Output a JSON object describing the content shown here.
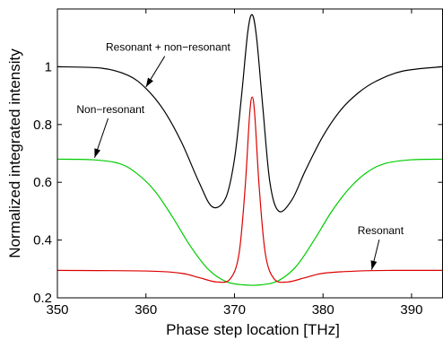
{
  "chart_data": {
    "type": "line",
    "title": "",
    "xlabel": "Phase step location [THz]",
    "ylabel": "Normalized integrated intensity",
    "xlim": [
      350,
      393.5
    ],
    "ylim": [
      0.2,
      1.2
    ],
    "grid": false,
    "legend": "none",
    "x_ticks": [
      "350",
      "360",
      "370",
      "380",
      "390"
    ],
    "y_ticks": [
      "0.2",
      "0.4",
      "0.6",
      "0.8",
      "1"
    ],
    "series": [
      {
        "color": "#000000",
        "x": [
          350,
          355,
          358,
          360,
          362,
          364,
          366,
          367.5,
          369,
          370,
          370.8,
          371.5,
          372,
          372.5,
          373.2,
          374,
          375,
          376.5,
          378,
          380,
          382,
          384,
          386,
          389,
          393.5
        ],
        "y": [
          1.0,
          0.995,
          0.97,
          0.925,
          0.85,
          0.74,
          0.6,
          0.515,
          0.545,
          0.68,
          0.9,
          1.12,
          1.18,
          1.1,
          0.86,
          0.6,
          0.5,
          0.54,
          0.64,
          0.76,
          0.85,
          0.91,
          0.95,
          0.985,
          1.0
        ]
      },
      {
        "color": "#00cc00",
        "x": [
          350,
          354,
          357,
          359,
          361,
          363,
          365,
          367,
          369,
          371,
          373,
          375,
          377,
          379,
          381,
          383,
          385,
          387,
          390,
          393.5
        ],
        "y": [
          0.68,
          0.678,
          0.665,
          0.63,
          0.57,
          0.48,
          0.38,
          0.3,
          0.257,
          0.245,
          0.245,
          0.26,
          0.31,
          0.4,
          0.5,
          0.58,
          0.635,
          0.665,
          0.678,
          0.68
        ]
      },
      {
        "color": "#dd0000",
        "x": [
          350,
          360,
          364,
          366,
          368,
          369.5,
          370.5,
          371.2,
          371.7,
          372,
          372.3,
          372.8,
          373.5,
          374.5,
          376,
          378,
          380,
          384,
          388,
          393.5
        ],
        "y": [
          0.295,
          0.293,
          0.285,
          0.27,
          0.255,
          0.265,
          0.35,
          0.58,
          0.83,
          0.895,
          0.83,
          0.58,
          0.35,
          0.265,
          0.255,
          0.27,
          0.285,
          0.293,
          0.295,
          0.295
        ]
      }
    ],
    "annotations": [
      {
        "label": "Resonant + non−resonant",
        "x": 362.5,
        "y": 1.055,
        "arrow_to": [
          360,
          0.93
        ]
      },
      {
        "label": "Non−resonant",
        "x": 356,
        "y": 0.84,
        "arrow_to": [
          354.2,
          0.685
        ]
      },
      {
        "label": "Resonant",
        "x": 386.5,
        "y": 0.42,
        "arrow_to": [
          385.5,
          0.297
        ]
      }
    ]
  }
}
